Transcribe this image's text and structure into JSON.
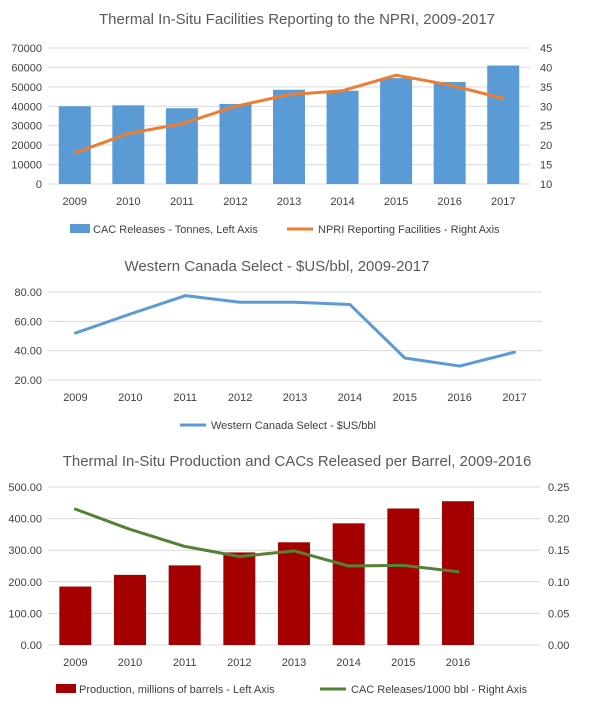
{
  "charts": [
    {
      "type": "bar+line",
      "title": "Thermal In-Situ Facilities Reporting to the NPRI, 2009-2017",
      "categories": [
        "2009",
        "2010",
        "2011",
        "2012",
        "2013",
        "2014",
        "2015",
        "2016",
        "2017"
      ],
      "left_axis": {
        "min": 0,
        "max": 70000,
        "step": 10000,
        "ticks": [
          "0",
          "10000",
          "20000",
          "30000",
          "40000",
          "50000",
          "60000",
          "70000"
        ]
      },
      "right_axis": {
        "min": 10,
        "max": 45,
        "step": 5,
        "ticks": [
          "10",
          "15",
          "20",
          "25",
          "30",
          "35",
          "40",
          "45"
        ]
      },
      "bars": {
        "name": "CAC Releases - Tonnes, Left Axis",
        "color": "#5b9bd5",
        "values": [
          40000,
          40500,
          39000,
          41200,
          48500,
          48000,
          54500,
          52500,
          61000
        ]
      },
      "line": {
        "name": "NPRI Reporting Facilities - Right Axis",
        "color": "#ed7d31",
        "values": [
          18,
          23,
          25.5,
          30,
          33,
          34,
          38,
          35.5,
          32
        ]
      },
      "legend_position": "bottom",
      "grid": true
    },
    {
      "type": "line",
      "title": "Western Canada Select - $US/bbl, 2009-2017",
      "categories": [
        "2009",
        "2010",
        "2011",
        "2012",
        "2013",
        "2014",
        "2015",
        "2016",
        "2017"
      ],
      "left_axis": {
        "min": 20,
        "max": 80,
        "step": 20,
        "ticks": [
          "20.00",
          "40.00",
          "60.00",
          "80.00"
        ]
      },
      "line": {
        "name": "Western Canada Select - $US/bbl",
        "color": "#5b9bd5",
        "values": [
          52,
          65,
          77.5,
          73,
          73,
          71.5,
          35,
          29.5,
          39
        ]
      },
      "legend_position": "bottom",
      "grid": true
    },
    {
      "type": "bar+line",
      "title": "Thermal In-Situ Production and CACs Released per Barrel, 2009-2016",
      "categories": [
        "2009",
        "2010",
        "2011",
        "2012",
        "2013",
        "2014",
        "2015",
        "2016"
      ],
      "left_axis": {
        "min": 0,
        "max": 500,
        "step": 100,
        "ticks": [
          "0.00",
          "100.00",
          "200.00",
          "300.00",
          "400.00",
          "500.00"
        ]
      },
      "right_axis": {
        "min": 0,
        "max": 0.25,
        "step": 0.05,
        "ticks": [
          "0.00",
          "0.05",
          "0.10",
          "0.15",
          "0.20",
          "0.25"
        ]
      },
      "bars": {
        "name": "Production, millions of barrels - Left Axis",
        "color": "#a50000",
        "values": [
          185,
          222,
          252,
          293,
          325,
          385,
          432,
          455
        ]
      },
      "line": {
        "name": "CAC Releases/1000 bbl - Right Axis",
        "color": "#548235",
        "values": [
          0.215,
          0.183,
          0.156,
          0.14,
          0.149,
          0.125,
          0.126,
          0.116
        ]
      },
      "legend_position": "bottom",
      "grid": true
    }
  ]
}
